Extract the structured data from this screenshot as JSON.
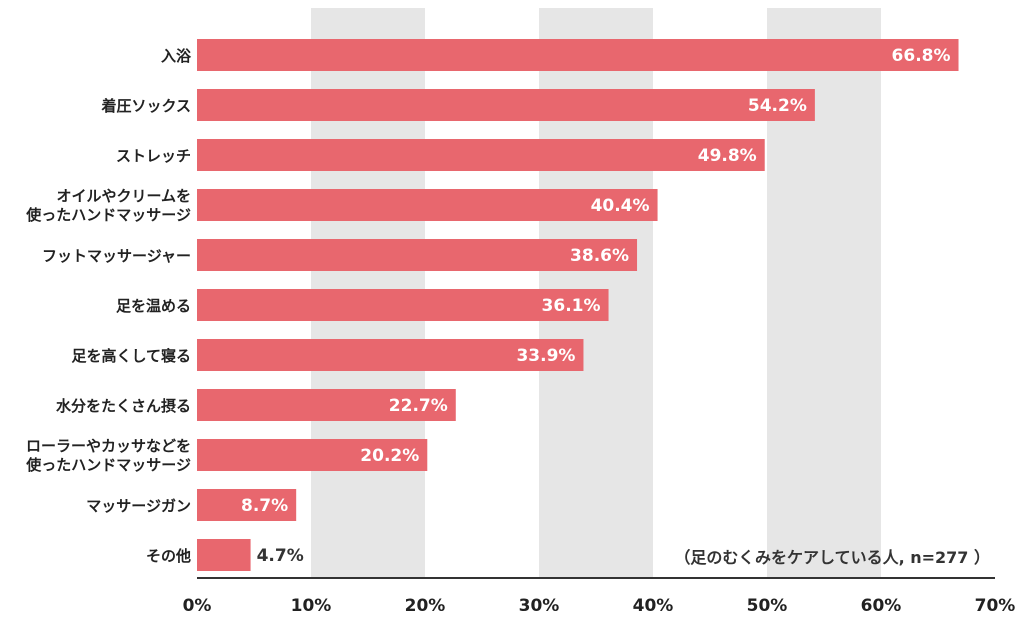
{
  "chart_data": {
    "type": "bar",
    "orientation": "horizontal",
    "categories": [
      "入浴",
      "着圧ソックス",
      "ストレッチ",
      "オイルやクリームを\n使ったハンドマッサージ",
      "フットマッサージャー",
      "足を温める",
      "足を高くして寝る",
      "水分をたくさん摂る",
      "ローラーやカッサなどを\n使ったハンドマッサージ",
      "マッサージガン",
      "その他"
    ],
    "values": [
      66.8,
      54.2,
      49.8,
      40.4,
      38.6,
      36.1,
      33.9,
      22.7,
      20.2,
      8.7,
      4.7
    ],
    "value_labels": [
      "66.8%",
      "54.2%",
      "49.8%",
      "40.4%",
      "38.6%",
      "36.1%",
      "33.9%",
      "22.7%",
      "20.2%",
      "8.7%",
      "4.7%"
    ],
    "x_ticks": [
      "0%",
      "10%",
      "20%",
      "30%",
      "40%",
      "50%",
      "60%",
      "70%"
    ],
    "xlim": [
      0,
      70
    ],
    "annotation": "（足のむくみをケアしている人, n=277 ）",
    "bar_color": "#e8676e",
    "band_color": "#e6e6e6",
    "grid": "alternating vertical bands"
  }
}
